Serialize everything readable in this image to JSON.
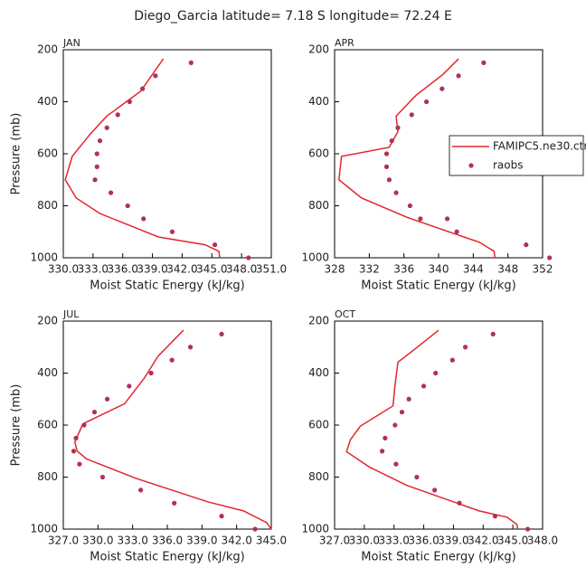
{
  "title": "Diego_Garcia   latitude= 7.18 S longitude= 72.24 E",
  "chart_data": [
    {
      "type": "line",
      "title": "JAN",
      "xlabel": "Moist Static Energy (kJ/kg)",
      "ylabel": "Pressure (mb)",
      "xlim": [
        330,
        351
      ],
      "xticks": [
        {
          "value": 330,
          "label": "330.0"
        },
        {
          "value": 333,
          "label": "333.0"
        },
        {
          "value": 336,
          "label": "336.0"
        },
        {
          "value": 339,
          "label": "339.0"
        },
        {
          "value": 342,
          "label": "342.0"
        },
        {
          "value": 345,
          "label": "345.0"
        },
        {
          "value": 348,
          "label": "348.0"
        },
        {
          "value": 351,
          "label": "351.0"
        }
      ],
      "ylim": [
        1000,
        200
      ],
      "yticks": [
        200,
        400,
        600,
        800,
        1000
      ],
      "series": [
        {
          "type": "line",
          "color": "#e3262b",
          "x": [
            340.1,
            337.8,
            334.4,
            332.7,
            330.9,
            330.2,
            331.3,
            333.7,
            339.6,
            344.3,
            345.7,
            345.8
          ],
          "y": [
            235,
            360,
            455,
            525,
            610,
            700,
            770,
            830,
            920,
            950,
            975,
            1000
          ]
        },
        {
          "type": "scatter",
          "color": "#b0305c",
          "x": [
            342.9,
            339.3,
            338.0,
            336.7,
            335.5,
            334.4,
            333.7,
            333.4,
            333.4,
            333.2,
            334.8,
            336.5,
            338.1,
            341.0,
            345.3,
            348.7
          ],
          "y": [
            250,
            300,
            350,
            400,
            450,
            500,
            550,
            600,
            650,
            700,
            750,
            800,
            850,
            900,
            950,
            1000
          ]
        }
      ]
    },
    {
      "type": "line",
      "title": "APR",
      "xlabel": "Moist Static Energy (kJ/kg)",
      "xlim": [
        328,
        352
      ],
      "xticks": [
        328,
        332,
        336,
        340,
        344,
        348,
        352
      ],
      "ylim": [
        1000,
        200
      ],
      "yticks": [
        200,
        400,
        600,
        800,
        1000
      ],
      "legend": "right",
      "series": [
        {
          "type": "line",
          "name": "FAMIPC5.ne30.ctr",
          "color": "#e3262b",
          "x": [
            342.3,
            340.5,
            337.4,
            335.1,
            335.3,
            334.3,
            328.8,
            328.5,
            331.1,
            336.4,
            341.6,
            344.7,
            346.4,
            346.5
          ],
          "y": [
            235,
            295,
            375,
            455,
            515,
            575,
            610,
            700,
            770,
            845,
            905,
            940,
            975,
            1000
          ]
        },
        {
          "type": "scatter",
          "name": "raobs",
          "color": "#b0305c",
          "x": [
            345.2,
            342.3,
            340.4,
            338.6,
            336.9,
            335.3,
            334.6,
            334.0,
            334.0,
            334.3,
            335.1,
            336.7,
            337.9,
            341.0,
            342.1,
            350.1,
            352.8
          ],
          "y": [
            250,
            300,
            350,
            400,
            450,
            500,
            550,
            600,
            650,
            700,
            750,
            800,
            850,
            850,
            900,
            950,
            1000
          ]
        }
      ]
    },
    {
      "type": "line",
      "title": "JUL",
      "xlabel": "Moist Static Energy (kJ/kg)",
      "ylabel": "Pressure (mb)",
      "xlim": [
        327,
        345
      ],
      "xticks": [
        {
          "value": 327,
          "label": "327.0"
        },
        {
          "value": 330,
          "label": "330.0"
        },
        {
          "value": 333,
          "label": "333.0"
        },
        {
          "value": 336,
          "label": "336.0"
        },
        {
          "value": 339,
          "label": "339.0"
        },
        {
          "value": 342,
          "label": "342.0"
        },
        {
          "value": 345,
          "label": "345.0"
        }
      ],
      "ylim": [
        1000,
        200
      ],
      "yticks": [
        200,
        400,
        600,
        800,
        1000
      ],
      "series": [
        {
          "type": "line",
          "color": "#e3262b",
          "x": [
            337.4,
            335.2,
            334.0,
            332.3,
            328.7,
            328.0,
            328.2,
            329.0,
            333.3,
            339.5,
            342.6,
            344.6,
            345.0
          ],
          "y": [
            235,
            335,
            420,
            518,
            595,
            665,
            700,
            730,
            805,
            895,
            930,
            975,
            1000
          ]
        },
        {
          "type": "scatter",
          "color": "#b0305c",
          "x": [
            340.7,
            338.0,
            336.4,
            334.6,
            332.7,
            330.8,
            329.7,
            328.8,
            328.1,
            327.9,
            328.4,
            330.4,
            333.7,
            336.6,
            340.7,
            343.6
          ],
          "y": [
            250,
            300,
            350,
            400,
            450,
            500,
            550,
            600,
            650,
            700,
            750,
            800,
            850,
            900,
            950,
            1000
          ]
        }
      ]
    },
    {
      "type": "line",
      "title": "OCT",
      "xlabel": "Moist Static Energy (kJ/kg)",
      "xlim": [
        327,
        348
      ],
      "xticks": [
        {
          "value": 327,
          "label": "327.0"
        },
        {
          "value": 330,
          "label": "330.0"
        },
        {
          "value": 333,
          "label": "333.0"
        },
        {
          "value": 336,
          "label": "336.0"
        },
        {
          "value": 339,
          "label": "339.0"
        },
        {
          "value": 342,
          "label": "342.0"
        },
        {
          "value": 345,
          "label": "345.0"
        },
        {
          "value": 348,
          "label": "348.0"
        }
      ],
      "ylim": [
        1000,
        200
      ],
      "yticks": [
        200,
        400,
        600,
        800,
        1000
      ],
      "series": [
        {
          "type": "line",
          "color": "#e3262b",
          "x": [
            337.5,
            335.2,
            333.4,
            333.1,
            332.9,
            329.6,
            328.6,
            328.2,
            330.5,
            334.3,
            341.6,
            344.4,
            345.4,
            345.5
          ],
          "y": [
            235,
            305,
            358,
            446,
            526,
            604,
            656,
            702,
            761,
            832,
            930,
            954,
            982,
            1000
          ]
        },
        {
          "type": "scatter",
          "color": "#b0305c",
          "x": [
            343.0,
            340.2,
            338.9,
            337.2,
            336.0,
            334.5,
            333.8,
            333.1,
            332.1,
            331.8,
            333.2,
            335.3,
            337.1,
            339.6,
            343.2,
            346.5
          ],
          "y": [
            250,
            300,
            350,
            400,
            450,
            500,
            550,
            600,
            650,
            700,
            750,
            800,
            850,
            900,
            950,
            1000
          ]
        }
      ]
    }
  ]
}
